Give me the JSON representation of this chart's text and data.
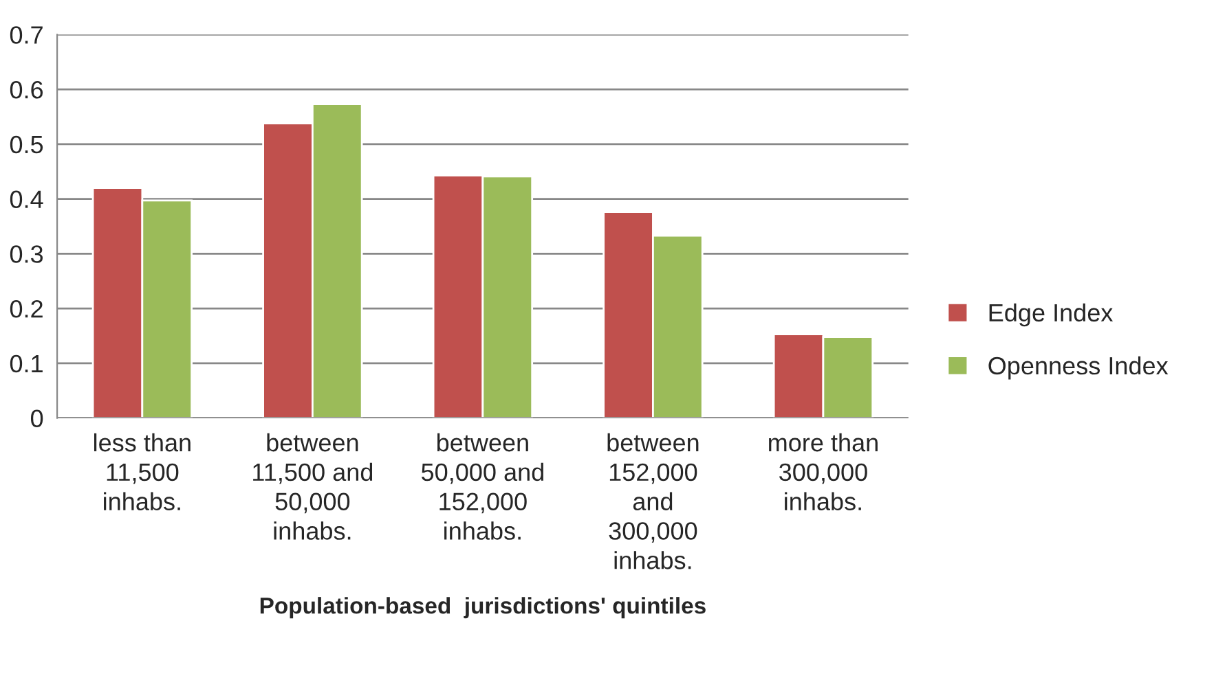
{
  "chart_data": {
    "type": "bar",
    "xlabel": "Population-based  jurisdictions' quintiles",
    "categories": [
      "less than\n11,500\ninhabs.",
      "between\n11,500 and\n50,000\ninhabs.",
      "between\n50,000 and\n152,000\ninhabs.",
      "between\n152,000\nand\n300,000\ninhabs.",
      "more than\n300,000\ninhabs."
    ],
    "series": [
      {
        "name": "Edge Index",
        "color": "#c0504d",
        "values": [
          0.42,
          0.538,
          0.443,
          0.376,
          0.153
        ]
      },
      {
        "name": "Openness Index",
        "color": "#9bbb59",
        "values": [
          0.397,
          0.573,
          0.441,
          0.333,
          0.148
        ]
      }
    ],
    "ylim": [
      0,
      0.7
    ],
    "yticks": [
      0,
      0.1,
      0.2,
      0.3,
      0.4,
      0.5,
      0.6,
      0.7
    ],
    "grid": "y",
    "legend": "right"
  }
}
